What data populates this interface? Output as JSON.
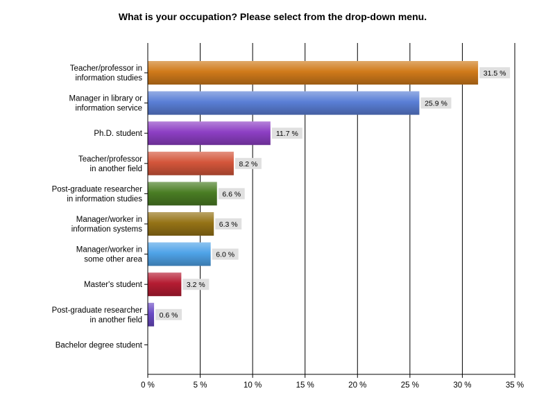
{
  "chart_data": {
    "type": "bar",
    "orientation": "horizontal",
    "title": "What is your occupation? Please select from the drop-down menu.",
    "xlabel": "",
    "ylabel": "",
    "xlim": [
      0,
      35
    ],
    "ticks": [
      0,
      5,
      10,
      15,
      20,
      25,
      30,
      35
    ],
    "tick_labels": [
      "0 %",
      "5 %",
      "10 %",
      "15 %",
      "20 %",
      "25 %",
      "30 %",
      "35 %"
    ],
    "grid": true,
    "legend": "none",
    "categories": [
      [
        "Teacher/professor in",
        "information studies"
      ],
      [
        "Manager in library or",
        "information service"
      ],
      [
        "Ph.D. student"
      ],
      [
        "Teacher/professor",
        "in another field"
      ],
      [
        "Post-graduate researcher",
        "in information studies"
      ],
      [
        "Manager/worker in",
        "information systems"
      ],
      [
        "Manager/worker in",
        "some other area"
      ],
      [
        "Master's student"
      ],
      [
        "Post-graduate researcher",
        "in another field"
      ],
      [
        "Bachelor degree student"
      ]
    ],
    "values": [
      31.5,
      25.9,
      11.7,
      8.2,
      6.6,
      6.3,
      6.0,
      3.2,
      0.6,
      0
    ],
    "value_labels": [
      "31.5 %",
      "25.9 %",
      "11.7 %",
      "8.2 %",
      "6.6 %",
      "6.3 %",
      "6.0 %",
      "3.2 %",
      "0.6 %",
      ""
    ],
    "colors": [
      "#d07a1a",
      "#5a7fd6",
      "#8d3fc4",
      "#d4563b",
      "#4a7d24",
      "#957316",
      "#4fa3e8",
      "#b51c32",
      "#6a4ac4",
      "#888888"
    ]
  }
}
